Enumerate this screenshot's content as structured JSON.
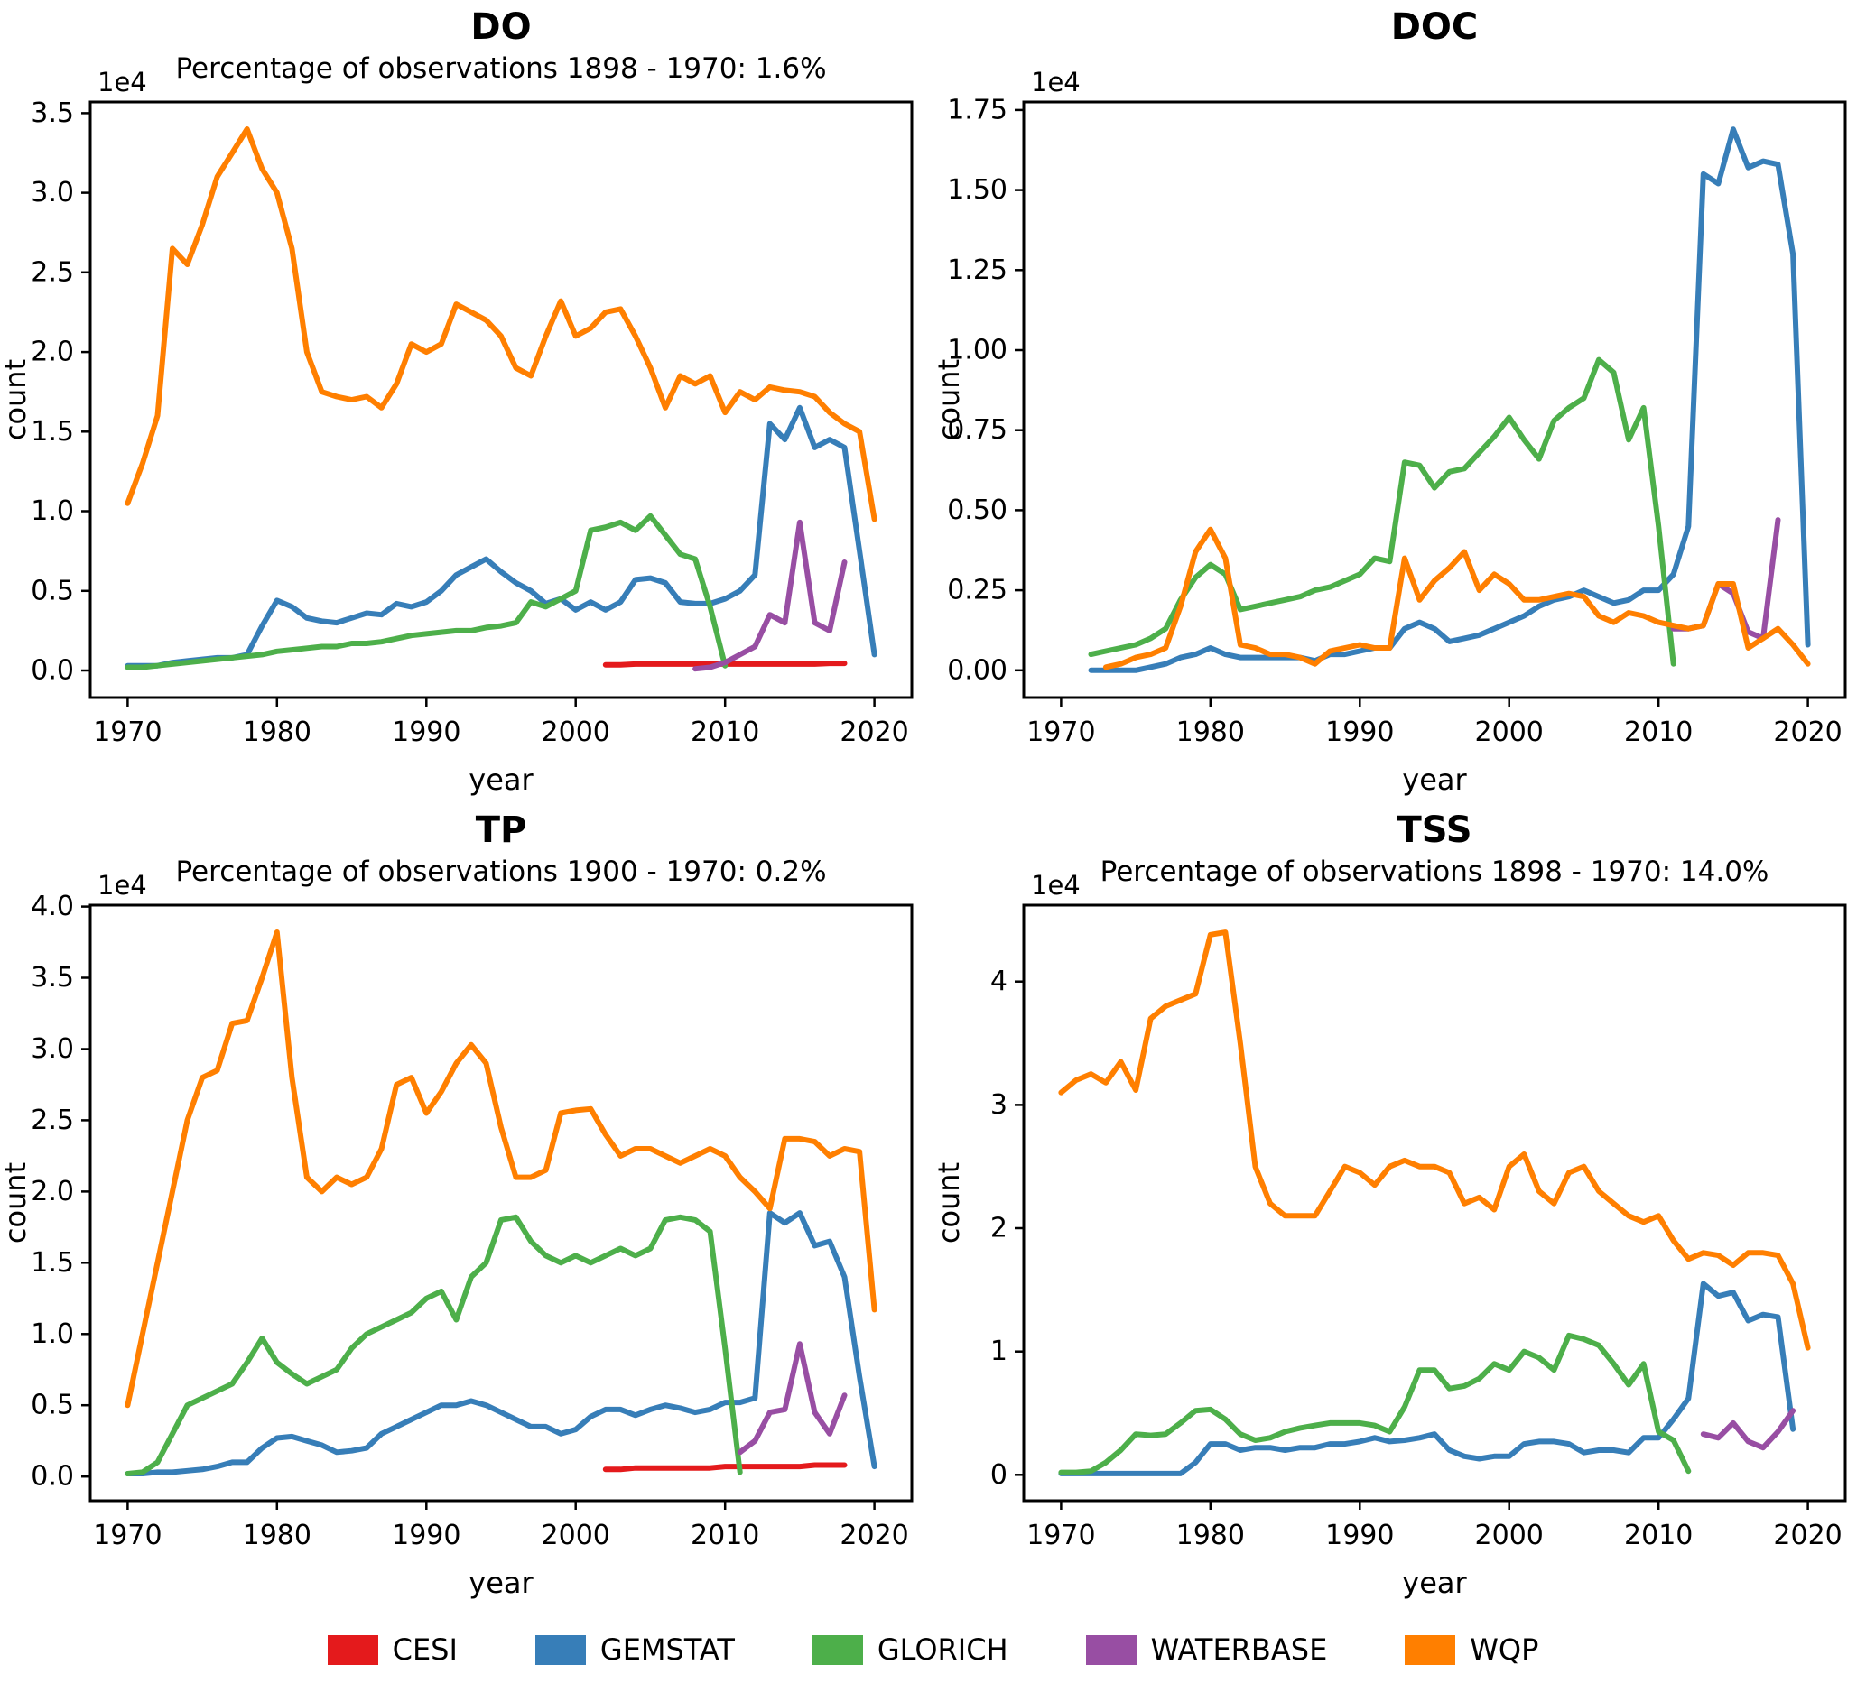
{
  "figure_background": "#ffffff",
  "axis_color": "#000000",
  "legend": {
    "items": [
      {
        "label": "CESI",
        "color": "#e41a1c"
      },
      {
        "label": "GEMSTAT",
        "color": "#377eb8"
      },
      {
        "label": "GLORICH",
        "color": "#4daf4a"
      },
      {
        "label": "WATERBASE",
        "color": "#984ea3"
      },
      {
        "label": "WQP",
        "color": "#ff7f00"
      }
    ]
  },
  "chart_data": [
    {
      "id": "do",
      "type": "line",
      "title": "DO",
      "subtitle": "Percentage of observations 1898 - 1970: 1.6%",
      "xlabel": "year",
      "ylabel": "count",
      "offset_label": "1e4",
      "xlim": [
        1967.5,
        2022.5
      ],
      "ylim": [
        -0.17,
        3.57
      ],
      "xticks": [
        1970,
        1980,
        1990,
        2000,
        2010,
        2020
      ],
      "yticks": [
        0,
        0.5,
        1.0,
        1.5,
        2.0,
        2.5,
        3.0,
        3.5
      ],
      "ytick_labels": [
        "0.0",
        "0.5",
        "1.0",
        "1.5",
        "2.0",
        "2.5",
        "3.0",
        "3.5"
      ],
      "grid": false,
      "series": [
        {
          "name": "CESI",
          "color": "#e41a1c",
          "x_start": 2002,
          "y": [
            0.035,
            0.035,
            0.04,
            0.04,
            0.04,
            0.04,
            0.04,
            0.04,
            0.04,
            0.04,
            0.04,
            0.04,
            0.04,
            0.04,
            0.04,
            0.045,
            0.045
          ]
        },
        {
          "name": "GEMSTAT",
          "color": "#377eb8",
          "x_start": 1970,
          "y": [
            0.03,
            0.03,
            0.03,
            0.05,
            0.06,
            0.07,
            0.08,
            0.08,
            0.1,
            0.28,
            0.44,
            0.4,
            0.33,
            0.31,
            0.3,
            0.33,
            0.36,
            0.35,
            0.42,
            0.4,
            0.43,
            0.5,
            0.6,
            0.65,
            0.7,
            0.62,
            0.55,
            0.5,
            0.42,
            0.45,
            0.38,
            0.43,
            0.38,
            0.43,
            0.57,
            0.58,
            0.55,
            0.43,
            0.42,
            0.42,
            0.45,
            0.5,
            0.6,
            1.55,
            1.45,
            1.65,
            1.4,
            1.45,
            1.4,
            0.75,
            0.1
          ]
        },
        {
          "name": "GLORICH",
          "color": "#4daf4a",
          "x_start": 1970,
          "y": [
            0.02,
            0.02,
            0.03,
            0.04,
            0.05,
            0.06,
            0.07,
            0.08,
            0.09,
            0.1,
            0.12,
            0.13,
            0.14,
            0.15,
            0.15,
            0.17,
            0.17,
            0.18,
            0.2,
            0.22,
            0.23,
            0.24,
            0.25,
            0.25,
            0.27,
            0.28,
            0.3,
            0.43,
            0.4,
            0.45,
            0.5,
            0.88,
            0.9,
            0.93,
            0.88,
            0.97,
            0.85,
            0.73,
            0.7,
            0.4,
            0.03
          ]
        },
        {
          "name": "WATERBASE",
          "color": "#984ea3",
          "x_start": 2008,
          "y": [
            0.01,
            0.02,
            0.05,
            0.1,
            0.15,
            0.35,
            0.3,
            0.93,
            0.3,
            0.25,
            0.68
          ]
        },
        {
          "name": "WQP",
          "color": "#ff7f00",
          "x_start": 1970,
          "y": [
            1.05,
            1.3,
            1.6,
            2.65,
            2.55,
            2.8,
            3.1,
            3.25,
            3.4,
            3.15,
            3.0,
            2.65,
            2.0,
            1.75,
            1.72,
            1.7,
            1.72,
            1.65,
            1.8,
            2.05,
            2.0,
            2.05,
            2.3,
            2.25,
            2.2,
            2.1,
            1.9,
            1.85,
            2.1,
            2.32,
            2.1,
            2.15,
            2.25,
            2.27,
            2.1,
            1.9,
            1.65,
            1.85,
            1.8,
            1.85,
            1.62,
            1.75,
            1.7,
            1.78,
            1.76,
            1.75,
            1.72,
            1.62,
            1.55,
            1.5,
            0.95
          ]
        }
      ]
    },
    {
      "id": "doc",
      "type": "line",
      "title": "DOC",
      "subtitle": "",
      "xlabel": "year",
      "ylabel": "count",
      "offset_label": "1e4",
      "xlim": [
        1967.5,
        2022.5
      ],
      "ylim": [
        -0.085,
        1.775
      ],
      "xticks": [
        1970,
        1980,
        1990,
        2000,
        2010,
        2020
      ],
      "yticks": [
        0,
        0.25,
        0.5,
        0.75,
        1.0,
        1.25,
        1.5,
        1.75
      ],
      "ytick_labels": [
        "0.00",
        "0.25",
        "0.50",
        "0.75",
        "1.00",
        "1.25",
        "1.50",
        "1.75"
      ],
      "grid": false,
      "series": [
        {
          "name": "GEMSTAT",
          "color": "#377eb8",
          "x_start": 1972,
          "y": [
            0.0,
            0.0,
            0.0,
            0.0,
            0.01,
            0.02,
            0.04,
            0.05,
            0.07,
            0.05,
            0.04,
            0.04,
            0.04,
            0.04,
            0.04,
            0.03,
            0.05,
            0.05,
            0.06,
            0.07,
            0.07,
            0.13,
            0.15,
            0.13,
            0.09,
            0.1,
            0.11,
            0.13,
            0.15,
            0.17,
            0.2,
            0.22,
            0.23,
            0.25,
            0.23,
            0.21,
            0.22,
            0.25,
            0.25,
            0.3,
            0.45,
            1.55,
            1.52,
            1.69,
            1.57,
            1.59,
            1.58,
            1.3,
            0.08
          ]
        },
        {
          "name": "GLORICH",
          "color": "#4daf4a",
          "x_start": 1972,
          "y": [
            0.05,
            0.06,
            0.07,
            0.08,
            0.1,
            0.13,
            0.22,
            0.29,
            0.33,
            0.3,
            0.19,
            0.2,
            0.21,
            0.22,
            0.23,
            0.25,
            0.26,
            0.28,
            0.3,
            0.35,
            0.34,
            0.65,
            0.64,
            0.57,
            0.62,
            0.63,
            0.68,
            0.73,
            0.79,
            0.72,
            0.66,
            0.78,
            0.82,
            0.85,
            0.97,
            0.93,
            0.72,
            0.82,
            0.45,
            0.02
          ]
        },
        {
          "name": "WATERBASE",
          "color": "#984ea3",
          "x_start": 2011,
          "y": [
            0.13,
            0.13,
            0.14,
            0.27,
            0.24,
            0.12,
            0.1,
            0.47
          ]
        },
        {
          "name": "WQP",
          "color": "#ff7f00",
          "x_start": 1973,
          "y": [
            0.01,
            0.02,
            0.04,
            0.05,
            0.07,
            0.2,
            0.37,
            0.44,
            0.35,
            0.08,
            0.07,
            0.05,
            0.05,
            0.04,
            0.02,
            0.06,
            0.07,
            0.08,
            0.07,
            0.07,
            0.35,
            0.22,
            0.28,
            0.32,
            0.37,
            0.25,
            0.3,
            0.27,
            0.22,
            0.22,
            0.23,
            0.24,
            0.23,
            0.17,
            0.15,
            0.18,
            0.17,
            0.15,
            0.14,
            0.13,
            0.14,
            0.27,
            0.27,
            0.07,
            0.1,
            0.13,
            0.08,
            0.02
          ]
        }
      ]
    },
    {
      "id": "tp",
      "type": "line",
      "title": "TP",
      "subtitle": "Percentage of observations 1900 - 1970: 0.2%",
      "xlabel": "year",
      "ylabel": "count",
      "offset_label": "1e4",
      "xlim": [
        1967.5,
        2022.5
      ],
      "ylim": [
        -0.17,
        4.01
      ],
      "xticks": [
        1970,
        1980,
        1990,
        2000,
        2010,
        2020
      ],
      "yticks": [
        0,
        0.5,
        1.0,
        1.5,
        2.0,
        2.5,
        3.0,
        3.5,
        4.0
      ],
      "ytick_labels": [
        "0.0",
        "0.5",
        "1.0",
        "1.5",
        "2.0",
        "2.5",
        "3.0",
        "3.5",
        "4.0"
      ],
      "grid": false,
      "series": [
        {
          "name": "CESI",
          "color": "#e41a1c",
          "x_start": 2002,
          "y": [
            0.05,
            0.05,
            0.06,
            0.06,
            0.06,
            0.06,
            0.06,
            0.06,
            0.07,
            0.07,
            0.07,
            0.07,
            0.07,
            0.07,
            0.08,
            0.08,
            0.08
          ]
        },
        {
          "name": "GEMSTAT",
          "color": "#377eb8",
          "x_start": 1970,
          "y": [
            0.02,
            0.02,
            0.03,
            0.03,
            0.04,
            0.05,
            0.07,
            0.1,
            0.1,
            0.2,
            0.27,
            0.28,
            0.25,
            0.22,
            0.17,
            0.18,
            0.2,
            0.3,
            0.35,
            0.4,
            0.45,
            0.5,
            0.5,
            0.53,
            0.5,
            0.45,
            0.4,
            0.35,
            0.35,
            0.3,
            0.33,
            0.42,
            0.47,
            0.47,
            0.43,
            0.47,
            0.5,
            0.48,
            0.45,
            0.47,
            0.52,
            0.52,
            0.55,
            1.85,
            1.78,
            1.85,
            1.62,
            1.65,
            1.4,
            0.7,
            0.07
          ]
        },
        {
          "name": "GLORICH",
          "color": "#4daf4a",
          "x_start": 1970,
          "y": [
            0.02,
            0.03,
            0.1,
            0.3,
            0.5,
            0.55,
            0.6,
            0.65,
            0.8,
            0.97,
            0.8,
            0.72,
            0.65,
            0.7,
            0.75,
            0.9,
            1.0,
            1.05,
            1.1,
            1.15,
            1.25,
            1.3,
            1.1,
            1.4,
            1.5,
            1.8,
            1.82,
            1.65,
            1.55,
            1.5,
            1.55,
            1.5,
            1.55,
            1.6,
            1.55,
            1.6,
            1.8,
            1.82,
            1.8,
            1.72,
            0.9,
            0.03
          ]
        },
        {
          "name": "WATERBASE",
          "color": "#984ea3",
          "x_start": 2011,
          "y": [
            0.17,
            0.25,
            0.45,
            0.47,
            0.93,
            0.45,
            0.3,
            0.57
          ]
        },
        {
          "name": "WQP",
          "color": "#ff7f00",
          "x_start": 1970,
          "y": [
            0.5,
            1.0,
            1.5,
            2.0,
            2.5,
            2.8,
            2.85,
            3.18,
            3.2,
            3.5,
            3.82,
            2.8,
            2.1,
            2.0,
            2.1,
            2.05,
            2.1,
            2.3,
            2.75,
            2.8,
            2.55,
            2.7,
            2.9,
            3.03,
            2.9,
            2.45,
            2.1,
            2.1,
            2.15,
            2.55,
            2.57,
            2.58,
            2.4,
            2.25,
            2.3,
            2.3,
            2.25,
            2.2,
            2.25,
            2.3,
            2.25,
            2.1,
            2.0,
            1.88,
            2.37,
            2.37,
            2.35,
            2.25,
            2.3,
            2.28,
            1.17
          ]
        }
      ]
    },
    {
      "id": "tss",
      "type": "line",
      "title": "TSS",
      "subtitle": "Percentage of observations 1898 - 1970: 14.0%",
      "xlabel": "year",
      "ylabel": "count",
      "offset_label": "1e4",
      "xlim": [
        1967.5,
        2022.5
      ],
      "ylim": [
        -0.21,
        4.62
      ],
      "xticks": [
        1970,
        1980,
        1990,
        2000,
        2010,
        2020
      ],
      "yticks": [
        0,
        1,
        2,
        3,
        4
      ],
      "ytick_labels": [
        "0",
        "1",
        "2",
        "3",
        "4"
      ],
      "grid": false,
      "series": [
        {
          "name": "GEMSTAT",
          "color": "#377eb8",
          "x_start": 1970,
          "y": [
            0.01,
            0.01,
            0.01,
            0.01,
            0.01,
            0.01,
            0.01,
            0.01,
            0.01,
            0.1,
            0.25,
            0.25,
            0.2,
            0.22,
            0.22,
            0.2,
            0.22,
            0.22,
            0.25,
            0.25,
            0.27,
            0.3,
            0.27,
            0.28,
            0.3,
            0.33,
            0.2,
            0.15,
            0.13,
            0.15,
            0.15,
            0.25,
            0.27,
            0.27,
            0.25,
            0.18,
            0.2,
            0.2,
            0.18,
            0.3,
            0.3,
            0.45,
            0.62,
            1.55,
            1.45,
            1.48,
            1.25,
            1.3,
            1.28,
            0.37
          ]
        },
        {
          "name": "GLORICH",
          "color": "#4daf4a",
          "x_start": 1970,
          "y": [
            0.02,
            0.02,
            0.03,
            0.1,
            0.2,
            0.33,
            0.32,
            0.33,
            0.42,
            0.52,
            0.53,
            0.45,
            0.33,
            0.28,
            0.3,
            0.35,
            0.38,
            0.4,
            0.42,
            0.42,
            0.42,
            0.4,
            0.35,
            0.55,
            0.85,
            0.85,
            0.7,
            0.72,
            0.78,
            0.9,
            0.85,
            1.0,
            0.95,
            0.85,
            1.13,
            1.1,
            1.05,
            0.9,
            0.73,
            0.9,
            0.35,
            0.28,
            0.03
          ]
        },
        {
          "name": "WATERBASE",
          "color": "#984ea3",
          "x_start": 2013,
          "y": [
            0.33,
            0.3,
            0.42,
            0.27,
            0.22,
            0.35,
            0.52
          ]
        },
        {
          "name": "WQP",
          "color": "#ff7f00",
          "x_start": 1970,
          "y": [
            3.1,
            3.2,
            3.25,
            3.18,
            3.35,
            3.12,
            3.7,
            3.8,
            3.85,
            3.9,
            4.38,
            4.4,
            3.5,
            2.5,
            2.2,
            2.1,
            2.1,
            2.1,
            2.3,
            2.5,
            2.45,
            2.35,
            2.5,
            2.55,
            2.5,
            2.5,
            2.45,
            2.2,
            2.25,
            2.15,
            2.5,
            2.6,
            2.3,
            2.2,
            2.45,
            2.5,
            2.3,
            2.2,
            2.1,
            2.05,
            2.1,
            1.9,
            1.75,
            1.8,
            1.78,
            1.7,
            1.8,
            1.8,
            1.78,
            1.55,
            1.03
          ]
        }
      ]
    }
  ]
}
